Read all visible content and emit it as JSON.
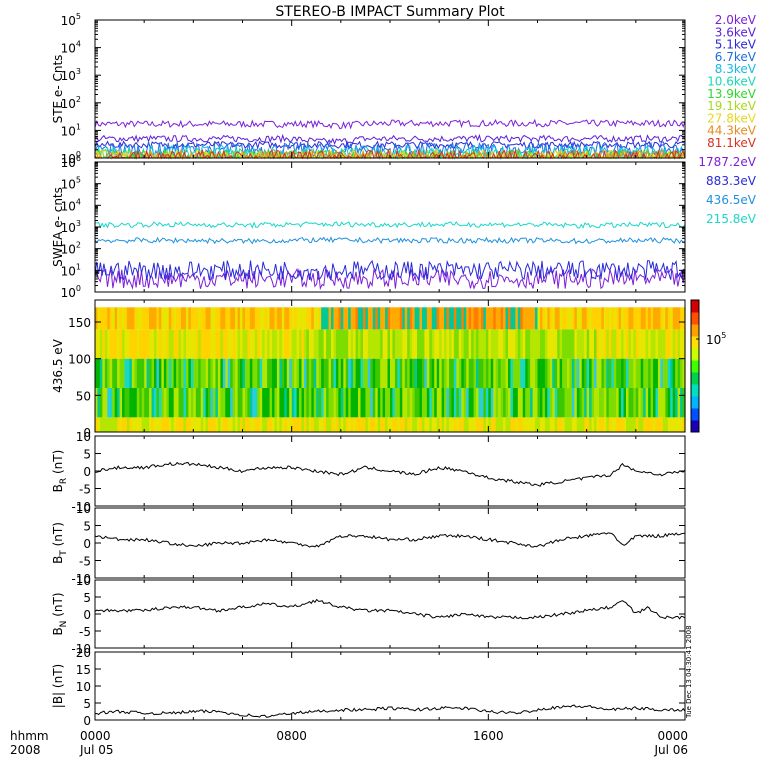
{
  "title": "STEREO-B IMPACT Summary Plot",
  "footer": {
    "left_label_1": "hhmm",
    "left_label_2": "2008",
    "ticks": [
      {
        "t": 0,
        "line1": "0000",
        "line2": "Jul 05"
      },
      {
        "t": 8,
        "line1": "0800",
        "line2": ""
      },
      {
        "t": 16,
        "line1": "1600",
        "line2": ""
      },
      {
        "t": 24,
        "line1": "0000",
        "line2": "Jul 06"
      }
    ]
  },
  "side_stamp": "Tue Dec 13 04:30:41 2008",
  "colorbar": {
    "label": "10",
    "exp": "5",
    "colors": [
      "#1a00b4",
      "#0050ff",
      "#00b4ff",
      "#00e0c0",
      "#00d250",
      "#3cff00",
      "#c8ff00",
      "#ffe000",
      "#ffa000",
      "#ff5000",
      "#d20000"
    ]
  },
  "chart_data": [
    {
      "type": "line",
      "ylabel": "STE e- Cnts",
      "yscale": "log",
      "ylim": [
        1,
        100000
      ],
      "yticks": [
        {
          "v": 1,
          "b": "10",
          "e": "0"
        },
        {
          "v": 10,
          "b": "10",
          "e": "1"
        },
        {
          "v": 100,
          "b": "10",
          "e": "2"
        },
        {
          "v": 1000,
          "b": "10",
          "e": "3"
        },
        {
          "v": 10000,
          "b": "10",
          "e": "4"
        },
        {
          "v": 100000,
          "b": "10",
          "e": "5"
        }
      ],
      "xlim": [
        0,
        24
      ],
      "series": [
        {
          "name": "2.0keV",
          "color": "#7d1fd8",
          "values": [
            17,
            17,
            17,
            17,
            17,
            17,
            17,
            17,
            17,
            17,
            15,
            17,
            18,
            18,
            18,
            18,
            18,
            18,
            18,
            18,
            18,
            18,
            18,
            18,
            18
          ]
        },
        {
          "name": "3.6keV",
          "color": "#5a1fd8",
          "values": [
            5,
            5,
            5,
            5,
            5,
            5,
            5,
            5,
            5,
            4,
            4,
            5,
            5,
            5,
            5,
            5,
            5,
            5,
            5,
            5,
            5,
            5,
            5,
            5,
            5
          ]
        },
        {
          "name": "5.1keV",
          "color": "#2a2ad8",
          "values": [
            3,
            3,
            3,
            3,
            3,
            3,
            3,
            3,
            3,
            3,
            3,
            3,
            3,
            3,
            3,
            3,
            3,
            3,
            3,
            3,
            3,
            3,
            3,
            3,
            3
          ]
        },
        {
          "name": "6.7keV",
          "color": "#1e6ee0",
          "values": [
            2,
            2,
            2,
            2,
            2,
            2,
            2,
            2,
            2,
            2,
            2,
            2,
            2,
            2,
            2,
            2,
            2,
            2,
            2,
            2,
            2,
            2,
            2,
            2,
            2
          ]
        },
        {
          "name": "8.3keV",
          "color": "#19b8e8",
          "values": [
            1.5,
            1.5,
            1.5,
            1.5,
            1.5,
            1.5,
            1.5,
            1.5,
            1.5,
            1.5,
            1.5,
            1.5,
            1.5,
            1.5,
            1.5,
            1.5,
            1.5,
            1.5,
            1.5,
            1.5,
            1.5,
            1.5,
            1.5,
            1.5,
            1.5
          ]
        },
        {
          "name": "10.6keV",
          "color": "#19d8b4",
          "values": [
            1.2,
            1.2,
            1.2,
            1.2,
            1.2,
            1.2,
            1.2,
            1.2,
            1.2,
            1.2,
            1.2,
            1.2,
            1.2,
            1.2,
            1.2,
            1.2,
            1.2,
            1.2,
            1.2,
            1.2,
            1.2,
            1.2,
            1.2,
            1.2,
            1.2
          ]
        },
        {
          "name": "13.9keV",
          "color": "#2cd82c",
          "values": [
            1,
            1,
            1,
            1,
            1,
            1,
            1,
            1,
            1,
            1,
            1,
            1,
            1,
            1,
            1,
            1,
            1,
            1,
            1,
            1,
            1,
            1,
            1,
            1,
            1
          ]
        },
        {
          "name": "19.1keV",
          "color": "#a8d81f",
          "values": [
            1,
            1,
            1,
            1,
            1,
            1,
            1,
            1,
            1,
            1,
            1,
            1,
            1,
            1,
            1,
            1,
            1,
            1,
            1,
            1,
            1,
            1,
            1,
            1,
            1
          ]
        },
        {
          "name": "27.8keV",
          "color": "#e8d81f",
          "values": [
            1,
            1,
            1,
            1,
            1,
            1,
            1,
            1,
            1,
            1,
            1,
            1,
            1,
            1,
            1,
            1,
            1,
            1,
            1,
            1,
            1,
            1,
            1,
            1,
            1
          ]
        },
        {
          "name": "44.3keV",
          "color": "#e88a1f",
          "values": [
            1,
            1,
            1,
            1,
            1,
            1,
            1,
            1,
            1,
            1,
            1,
            1,
            1,
            1,
            1,
            1,
            1,
            1,
            1,
            1,
            1,
            1,
            1,
            1,
            1
          ]
        },
        {
          "name": "81.1keV",
          "color": "#d8321f",
          "values": [
            1,
            1,
            1,
            1,
            1,
            1,
            1,
            1,
            1,
            1,
            1,
            1,
            1,
            1,
            1,
            1,
            1,
            1,
            1,
            1,
            1,
            1,
            1,
            1,
            1
          ]
        }
      ]
    },
    {
      "type": "line",
      "ylabel": "SWEA e- cnts",
      "yscale": "log",
      "ylim": [
        1,
        1000000
      ],
      "yticks": [
        {
          "v": 1,
          "b": "10",
          "e": "0"
        },
        {
          "v": 10,
          "b": "10",
          "e": "1"
        },
        {
          "v": 100,
          "b": "10",
          "e": "2"
        },
        {
          "v": 1000,
          "b": "10",
          "e": "3"
        },
        {
          "v": 10000,
          "b": "10",
          "e": "4"
        },
        {
          "v": 100000,
          "b": "10",
          "e": "5"
        },
        {
          "v": 1000000,
          "b": "10",
          "e": "6"
        }
      ],
      "xlim": [
        0,
        24
      ],
      "series": [
        {
          "name": "1787.2eV",
          "color": "#7d1fd8",
          "values": [
            4,
            4,
            4,
            4,
            4,
            4,
            4,
            4,
            4,
            4,
            4,
            4,
            4,
            4,
            4,
            4,
            4,
            4,
            4,
            4,
            4,
            4,
            4,
            4,
            4
          ]
        },
        {
          "name": "883.3eV",
          "color": "#2a2ad8",
          "values": [
            10,
            10,
            10,
            10,
            10,
            10,
            10,
            10,
            10,
            10,
            10,
            10,
            10,
            10,
            10,
            10,
            10,
            10,
            10,
            10,
            10,
            10,
            10,
            10,
            10
          ]
        },
        {
          "name": "436.5eV",
          "color": "#1e90e0",
          "values": [
            240,
            240,
            240,
            240,
            240,
            230,
            220,
            230,
            240,
            250,
            250,
            240,
            240,
            240,
            240,
            240,
            240,
            240,
            240,
            230,
            220,
            230,
            240,
            240,
            240
          ]
        },
        {
          "name": "215.8eV",
          "color": "#19d8c8",
          "values": [
            1250,
            1250,
            1300,
            1300,
            1300,
            1250,
            1200,
            1250,
            1300,
            1350,
            1350,
            1300,
            1300,
            1300,
            1300,
            1300,
            1300,
            1300,
            1300,
            1200,
            1150,
            1200,
            1250,
            1250,
            1250
          ]
        }
      ]
    },
    {
      "type": "heatmap",
      "ylabel": "436.5 eV",
      "ylim": [
        0,
        180
      ],
      "yticks": [
        0,
        50,
        100,
        150
      ],
      "xlim": [
        0,
        24
      ]
    },
    {
      "type": "line",
      "ylabel_main": "B",
      "ylabel_sub": "R",
      "ylabel_unit": " (nT)",
      "ylim": [
        -10,
        10
      ],
      "yticks": [
        -10,
        -5,
        0,
        5,
        10
      ],
      "xlim": [
        0,
        24
      ],
      "series": [
        {
          "name": "",
          "color": "#000000",
          "x": [
            0,
            1,
            2,
            3,
            4,
            5,
            6,
            7,
            8,
            9,
            10,
            11,
            12,
            13,
            14,
            15,
            16,
            17,
            18,
            19,
            20,
            21,
            21.5,
            22,
            23,
            24
          ],
          "values": [
            0,
            1,
            1,
            2,
            2,
            1,
            0,
            1,
            1,
            0,
            -1,
            1,
            0,
            -1,
            1,
            0,
            -2,
            -3,
            -4,
            -3,
            -2,
            -1,
            2,
            0,
            -1,
            0
          ]
        }
      ]
    },
    {
      "type": "line",
      "ylabel_main": "B",
      "ylabel_sub": "T",
      "ylabel_unit": " (nT)",
      "ylim": [
        -10,
        10
      ],
      "yticks": [
        -10,
        -5,
        0,
        5,
        10
      ],
      "xlim": [
        0,
        24
      ],
      "series": [
        {
          "name": "",
          "color": "#000000",
          "x": [
            0,
            1,
            2,
            3,
            4,
            5,
            6,
            7,
            8,
            9,
            10,
            11,
            12,
            13,
            14,
            15,
            16,
            17,
            18,
            19,
            20,
            21,
            21.5,
            22,
            23,
            24
          ],
          "values": [
            2,
            1,
            1,
            0,
            -1,
            0,
            0,
            1,
            0,
            -1,
            2,
            2,
            1,
            1,
            2,
            2,
            1,
            0,
            -1,
            1,
            2,
            3,
            -1,
            2,
            2,
            3
          ]
        }
      ]
    },
    {
      "type": "line",
      "ylabel_main": "B",
      "ylabel_sub": "N",
      "ylabel_unit": " (nT)",
      "ylim": [
        -10,
        10
      ],
      "yticks": [
        -10,
        -5,
        0,
        5,
        10
      ],
      "xlim": [
        0,
        24
      ],
      "series": [
        {
          "name": "",
          "color": "#000000",
          "x": [
            0,
            1,
            2,
            3,
            4,
            5,
            6,
            7,
            8,
            9,
            10,
            11,
            12,
            13,
            14,
            15,
            16,
            17,
            18,
            19,
            20,
            21,
            21.5,
            22,
            22.5,
            23,
            24
          ],
          "values": [
            1,
            1,
            1,
            2,
            2,
            1,
            2,
            3,
            2,
            4,
            2,
            1,
            1,
            0,
            -1,
            0,
            -1,
            -1,
            -1,
            0,
            1,
            2,
            4,
            0,
            2,
            -1,
            -1
          ]
        }
      ]
    },
    {
      "type": "line",
      "ylabel": "|B| (nT)",
      "ylim": [
        0,
        20
      ],
      "yticks": [
        0,
        5,
        10,
        15,
        20
      ],
      "xlim": [
        0,
        24
      ],
      "series": [
        {
          "name": "",
          "color": "#000000",
          "x": [
            0,
            1,
            2,
            3,
            4,
            5,
            6,
            7,
            8,
            9,
            10,
            11,
            12,
            13,
            14,
            15,
            16,
            17,
            18,
            19,
            20,
            21,
            22,
            23,
            24
          ],
          "values": [
            2,
            2.5,
            2,
            2,
            2.5,
            2.5,
            1.5,
            1,
            2,
            2.5,
            3,
            3,
            3.5,
            3,
            3.5,
            3.5,
            2.5,
            2,
            3,
            4,
            4,
            3,
            3.5,
            3,
            3
          ]
        }
      ]
    }
  ]
}
